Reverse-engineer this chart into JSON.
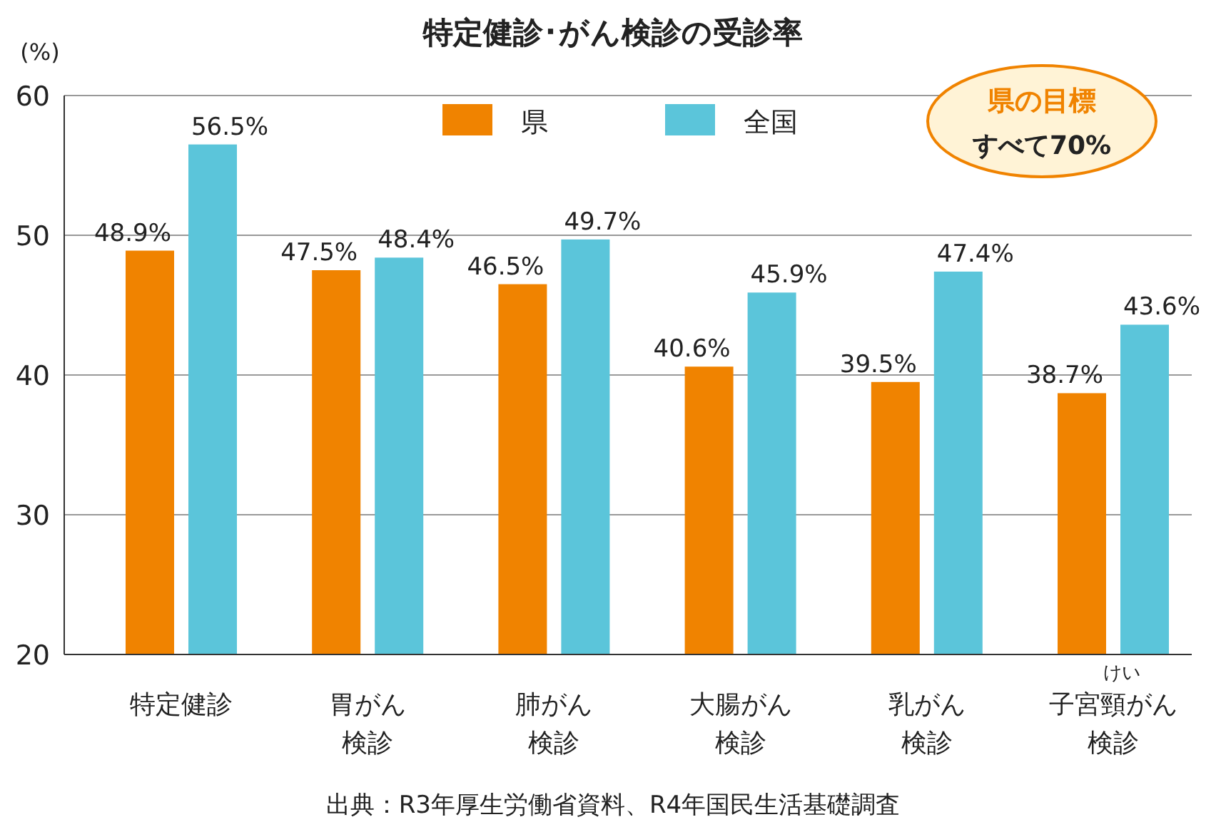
{
  "chart_data": {
    "type": "bar",
    "title": "特定健診･がん検診の受診率",
    "ylabel": "(%)",
    "categories": [
      "特定健診",
      "胃がん検診",
      "肺がん検診",
      "大腸がん検診",
      "乳がん検診",
      "子宮頸がん検診"
    ],
    "series": [
      {
        "name": "県",
        "color": "#f08300",
        "values": [
          48.9,
          47.5,
          46.5,
          40.6,
          39.5,
          38.7
        ],
        "value_labels": [
          "48.9%",
          "47.5%",
          "46.5%",
          "40.6%",
          "39.5%",
          "38.7%"
        ]
      },
      {
        "name": "全国",
        "color": "#5bc5da",
        "values": [
          56.5,
          48.4,
          49.7,
          45.9,
          47.4,
          43.6
        ],
        "value_labels": [
          "56.5%",
          "48.4%",
          "49.7%",
          "45.9%",
          "47.4%",
          "43.6%"
        ]
      }
    ],
    "ylim": [
      20,
      60
    ],
    "yticks": [
      20,
      30,
      40,
      50,
      60
    ],
    "grid": "y",
    "legend": "top",
    "annotations": [
      "県の目標",
      "すべて70%",
      "出典：R3年厚生労働省資料、R4年国民生活基礎調査",
      "けい"
    ]
  }
}
